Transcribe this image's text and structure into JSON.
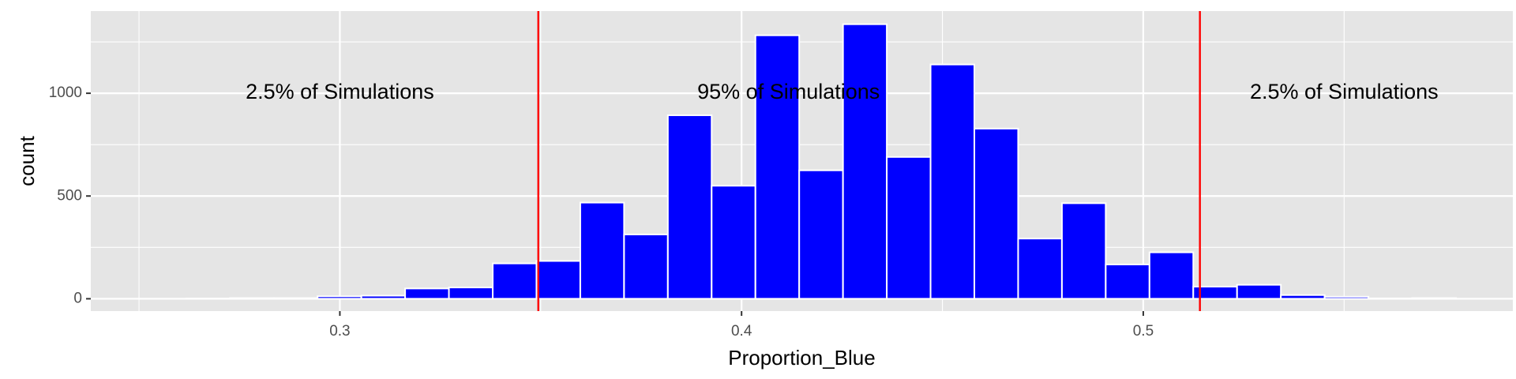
{
  "chart_data": {
    "type": "bar",
    "title": "",
    "xlabel": "Proportion_Blue",
    "ylabel": "count",
    "xlim": [
      0.238,
      0.592
    ],
    "ylim": [
      -60,
      1400
    ],
    "grid": true,
    "legend": "none",
    "bin_width": 0.0109,
    "bin_centers": [
      0.2672,
      0.2781,
      0.289,
      0.2999,
      0.3108,
      0.3217,
      0.3326,
      0.3435,
      0.3544,
      0.3653,
      0.3762,
      0.3871,
      0.398,
      0.4089,
      0.4198,
      0.4307,
      0.4416,
      0.4525,
      0.4634,
      0.4743,
      0.4852,
      0.4961,
      0.507,
      0.5179,
      0.5288,
      0.5397,
      0.5506,
      0.5615,
      0.5724
    ],
    "values": [
      1,
      3,
      3,
      12,
      15,
      50,
      55,
      172,
      184,
      468,
      313,
      893,
      550,
      1282,
      625,
      1336,
      690,
      1140,
      828,
      293,
      465,
      167,
      226,
      59,
      68,
      18,
      10,
      2,
      3
    ],
    "bar_fill": "#0000ff",
    "bar_outline": "#ffffff",
    "panel_background": "#e5e5e5",
    "x_ticks": [
      {
        "value": 0.3,
        "label": "0.3"
      },
      {
        "value": 0.4,
        "label": "0.4"
      },
      {
        "value": 0.5,
        "label": "0.5"
      }
    ],
    "x_minor_ticks": [
      0.25,
      0.35,
      0.45,
      0.55
    ],
    "y_ticks": [
      {
        "value": 0,
        "label": "0"
      },
      {
        "value": 500,
        "label": "500"
      },
      {
        "value": 1000,
        "label": "1000"
      }
    ],
    "y_minor_ticks": [
      250,
      750,
      1250
    ],
    "vlines": [
      {
        "x": 0.3494,
        "color": "#ff0000"
      },
      {
        "x": 0.5141,
        "color": "#ff0000"
      }
    ],
    "annotations": [
      {
        "text": "2.5% of Simulations",
        "x": 0.3,
        "y": 1000
      },
      {
        "text": "95% of Simulations",
        "x": 0.4117,
        "y": 1000
      },
      {
        "text": "2.5% of Simulations",
        "x": 0.55,
        "y": 1000
      }
    ]
  }
}
